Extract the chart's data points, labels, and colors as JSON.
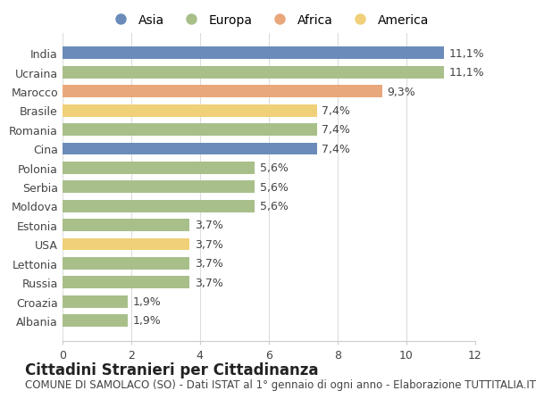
{
  "categories": [
    "India",
    "Ucraina",
    "Marocco",
    "Brasile",
    "Romania",
    "Cina",
    "Polonia",
    "Serbia",
    "Moldova",
    "Estonia",
    "USA",
    "Lettonia",
    "Russia",
    "Croazia",
    "Albania"
  ],
  "values": [
    11.1,
    11.1,
    9.3,
    7.4,
    7.4,
    7.4,
    5.6,
    5.6,
    5.6,
    3.7,
    3.7,
    3.7,
    3.7,
    1.9,
    1.9
  ],
  "labels": [
    "11,1%",
    "11,1%",
    "9,3%",
    "7,4%",
    "7,4%",
    "7,4%",
    "5,6%",
    "5,6%",
    "5,6%",
    "3,7%",
    "3,7%",
    "3,7%",
    "3,7%",
    "1,9%",
    "1,9%"
  ],
  "colors": [
    "#6b8cba",
    "#a8bf8a",
    "#e8a87c",
    "#f0d078",
    "#a8bf8a",
    "#6b8cba",
    "#a8bf8a",
    "#a8bf8a",
    "#a8bf8a",
    "#a8bf8a",
    "#f0d078",
    "#a8bf8a",
    "#a8bf8a",
    "#a8bf8a",
    "#a8bf8a"
  ],
  "legend_labels": [
    "Asia",
    "Europa",
    "Africa",
    "America"
  ],
  "legend_colors": [
    "#6b8cba",
    "#a8bf8a",
    "#e8a87c",
    "#f0d078"
  ],
  "title": "Cittadini Stranieri per Cittadinanza",
  "subtitle": "COMUNE DI SAMOLACO (SO) - Dati ISTAT al 1° gennaio di ogni anno - Elaborazione TUTTITALIA.IT",
  "xlim": [
    0,
    12
  ],
  "xticks": [
    0,
    2,
    4,
    6,
    8,
    10,
    12
  ],
  "background_color": "#ffffff",
  "bar_height": 0.65,
  "label_fontsize": 9,
  "tick_fontsize": 9,
  "title_fontsize": 12,
  "subtitle_fontsize": 8.5
}
